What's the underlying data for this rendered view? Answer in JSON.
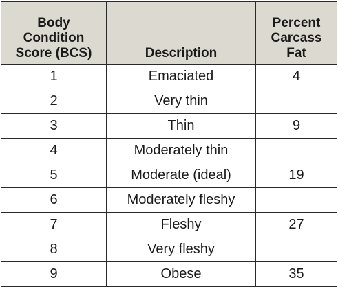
{
  "table": {
    "headers": {
      "score": [
        "Body",
        "Condition",
        "Score (BCS)"
      ],
      "description": "Description",
      "fat": [
        "Percent",
        "Carcass",
        "Fat"
      ]
    },
    "rows": [
      {
        "score": "1",
        "description": "Emaciated",
        "fat": "4"
      },
      {
        "score": "2",
        "description": "Very thin",
        "fat": ""
      },
      {
        "score": "3",
        "description": "Thin",
        "fat": "9"
      },
      {
        "score": "4",
        "description": "Moderately thin",
        "fat": ""
      },
      {
        "score": "5",
        "description": "Moderate (ideal)",
        "fat": "19"
      },
      {
        "score": "6",
        "description": "Moderately fleshy",
        "fat": ""
      },
      {
        "score": "7",
        "description": "Fleshy",
        "fat": "27"
      },
      {
        "score": "8",
        "description": "Very fleshy",
        "fat": ""
      },
      {
        "score": "9",
        "description": "Obese",
        "fat": "35"
      }
    ]
  }
}
